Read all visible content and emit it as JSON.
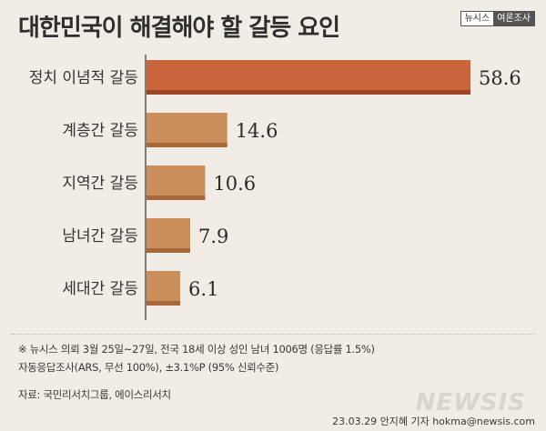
{
  "header": {
    "title": "대한민국이 해결해야 할 갈등 요인",
    "badge_left": "뉴시스",
    "badge_right": "여론조사"
  },
  "chart_data": {
    "type": "bar",
    "orientation": "horizontal",
    "categories": [
      "정치 이념적 갈등",
      "계층간 갈등",
      "지역간 갈등",
      "남녀간 갈등",
      "세대간 갈등"
    ],
    "values": [
      58.6,
      14.6,
      10.6,
      7.9,
      6.1
    ],
    "value_labels": [
      "58.6",
      "14.6",
      "10.6",
      "7.9",
      "6.1"
    ],
    "title": "대한민국이 해결해야 할 갈등 요인",
    "highlight_color": "#c8653a",
    "bar_color": "#c98e5a",
    "grid": false
  },
  "notes": {
    "line1": "※ 뉴시스 의뢰 3월 25일~27일, 전국 18세 이상 성인 남녀 1006명 (응답률 1.5%)",
    "line2": "자동응답조사(ARS, 무선 100%), ±3.1%P (95% 신뢰수준)",
    "source": "자료: 국민리서치그룹, 에이스리서치"
  },
  "footer": {
    "watermark": "NEWSIS",
    "credit": "23.03.29 안지혜 기자 hokma@newsis.com"
  }
}
